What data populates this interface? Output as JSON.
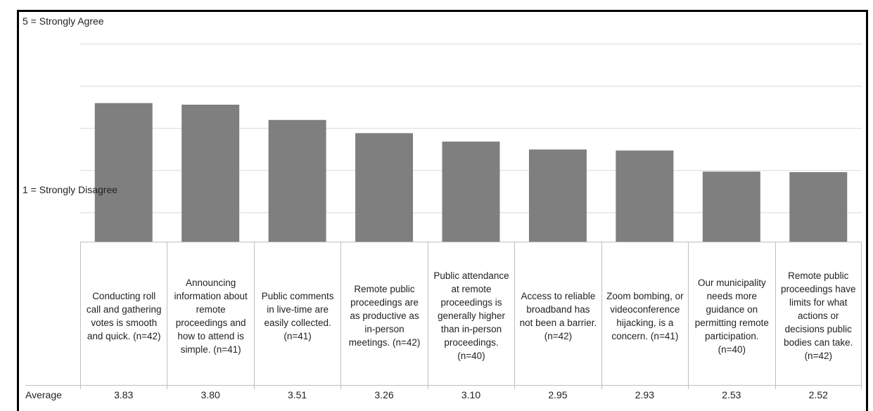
{
  "chart_data": {
    "type": "bar",
    "y_top_label": "5 = Strongly Agree",
    "y_bottom_label": "1 = Strongly Disagree",
    "ylim": [
      1.2,
      4.5
    ],
    "grid": true,
    "row_label": "Average",
    "categories": [
      "Conducting roll call and gathering votes is smooth and quick. (n=42)",
      "Announcing information about remote proceedings and how to attend is simple. (n=41)",
      "Public comments in live-time are easily collected. (n=41)",
      "Remote public proceedings are as productive as in-person meetings. (n=42)",
      "Public attendance at remote proceedings is generally higher than in-person proceedings. (n=40)",
      "Access to reliable broadband has not been a barrier. (n=42)",
      "Zoom bombing, or videoconference hijacking, is a concern. (n=41)",
      "Our municipality needs more guidance on permitting remote participation. (n=40)",
      "Remote public proceedings have limits for what actions or decisions public bodies can take. (n=42)"
    ],
    "values": [
      3.83,
      3.8,
      3.51,
      3.26,
      3.1,
      2.95,
      2.93,
      2.53,
      2.52
    ],
    "value_labels": [
      "3.83",
      "3.80",
      "3.51",
      "3.26",
      "3.10",
      "2.95",
      "2.93",
      "2.53",
      "2.52"
    ],
    "bar_color": "#7f7f7f",
    "grid_color": "#d9d9d9"
  }
}
